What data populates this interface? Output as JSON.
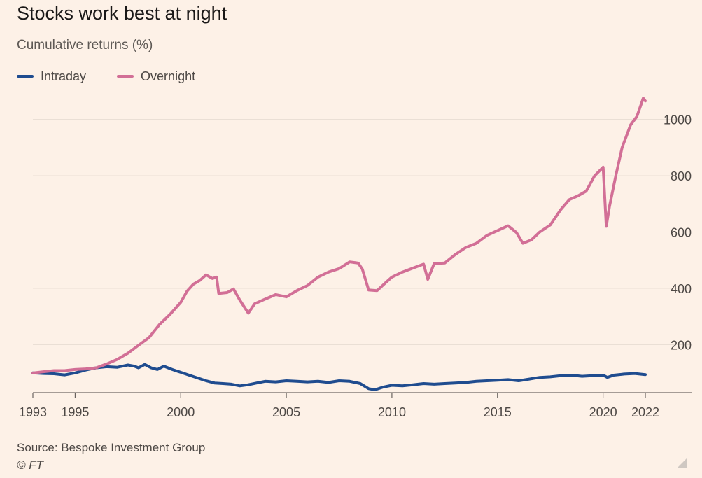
{
  "title": "Stocks work best at night",
  "subtitle": "Cumulative returns (%)",
  "source": "Source: Bespoke Investment Group",
  "copyright": "© FT",
  "chart_data": {
    "type": "line",
    "title": "Stocks work best at night",
    "subtitle": "Cumulative returns (%)",
    "xlabel": "",
    "ylabel": "Cumulative returns (%)",
    "xlim": [
      1993,
      2022
    ],
    "ylim": [
      0,
      1100
    ],
    "x_ticks": [
      "1993",
      "1995",
      "2000",
      "2005",
      "2010",
      "2015",
      "2020",
      "2022"
    ],
    "y_ticks": [
      "200",
      "400",
      "600",
      "800",
      "1000"
    ],
    "grid": "horizontal",
    "legend_position": "top-left",
    "series": [
      {
        "name": "Intraday",
        "color": "#1f4c8f",
        "points": [
          [
            1993.0,
            100
          ],
          [
            1993.5,
            98
          ],
          [
            1994.0,
            97
          ],
          [
            1994.5,
            93
          ],
          [
            1995.0,
            100
          ],
          [
            1995.5,
            110
          ],
          [
            1996.0,
            118
          ],
          [
            1996.5,
            122
          ],
          [
            1997.0,
            120
          ],
          [
            1997.5,
            128
          ],
          [
            1997.8,
            124
          ],
          [
            1998.0,
            118
          ],
          [
            1998.3,
            130
          ],
          [
            1998.6,
            118
          ],
          [
            1998.9,
            112
          ],
          [
            1999.2,
            124
          ],
          [
            1999.6,
            112
          ],
          [
            2000.0,
            102
          ],
          [
            2000.4,
            92
          ],
          [
            2000.8,
            82
          ],
          [
            2001.2,
            72
          ],
          [
            2001.6,
            64
          ],
          [
            2002.0,
            62
          ],
          [
            2002.4,
            60
          ],
          [
            2002.8,
            54
          ],
          [
            2003.2,
            58
          ],
          [
            2003.6,
            64
          ],
          [
            2004.0,
            70
          ],
          [
            2004.5,
            68
          ],
          [
            2005.0,
            72
          ],
          [
            2005.5,
            70
          ],
          [
            2006.0,
            68
          ],
          [
            2006.5,
            70
          ],
          [
            2007.0,
            66
          ],
          [
            2007.5,
            72
          ],
          [
            2008.0,
            70
          ],
          [
            2008.5,
            62
          ],
          [
            2008.9,
            44
          ],
          [
            2009.2,
            40
          ],
          [
            2009.6,
            50
          ],
          [
            2010.0,
            56
          ],
          [
            2010.5,
            54
          ],
          [
            2011.0,
            58
          ],
          [
            2011.5,
            62
          ],
          [
            2012.0,
            60
          ],
          [
            2012.5,
            62
          ],
          [
            2013.0,
            64
          ],
          [
            2013.5,
            66
          ],
          [
            2014.0,
            70
          ],
          [
            2014.5,
            72
          ],
          [
            2015.0,
            74
          ],
          [
            2015.5,
            76
          ],
          [
            2016.0,
            72
          ],
          [
            2016.5,
            78
          ],
          [
            2017.0,
            84
          ],
          [
            2017.5,
            86
          ],
          [
            2018.0,
            90
          ],
          [
            2018.5,
            92
          ],
          [
            2019.0,
            88
          ],
          [
            2019.5,
            90
          ],
          [
            2020.0,
            92
          ],
          [
            2020.2,
            84
          ],
          [
            2020.5,
            92
          ],
          [
            2021.0,
            96
          ],
          [
            2021.5,
            98
          ],
          [
            2022.0,
            94
          ]
        ]
      },
      {
        "name": "Overnight",
        "color": "#d26f96",
        "points": [
          [
            1993.0,
            100
          ],
          [
            1993.5,
            104
          ],
          [
            1994.0,
            108
          ],
          [
            1994.5,
            108
          ],
          [
            1995.0,
            112
          ],
          [
            1995.5,
            114
          ],
          [
            1996.0,
            118
          ],
          [
            1996.5,
            132
          ],
          [
            1997.0,
            148
          ],
          [
            1997.5,
            170
          ],
          [
            1998.0,
            198
          ],
          [
            1998.5,
            225
          ],
          [
            1999.0,
            272
          ],
          [
            1999.5,
            308
          ],
          [
            2000.0,
            350
          ],
          [
            2000.3,
            390
          ],
          [
            2000.6,
            415
          ],
          [
            2000.9,
            428
          ],
          [
            2001.2,
            448
          ],
          [
            2001.5,
            435
          ],
          [
            2001.7,
            440
          ],
          [
            2001.8,
            382
          ],
          [
            2002.2,
            385
          ],
          [
            2002.5,
            398
          ],
          [
            2002.8,
            358
          ],
          [
            2003.2,
            312
          ],
          [
            2003.5,
            345
          ],
          [
            2004.0,
            362
          ],
          [
            2004.5,
            378
          ],
          [
            2005.0,
            370
          ],
          [
            2005.5,
            392
          ],
          [
            2006.0,
            410
          ],
          [
            2006.5,
            440
          ],
          [
            2007.0,
            458
          ],
          [
            2007.5,
            470
          ],
          [
            2008.0,
            494
          ],
          [
            2008.4,
            490
          ],
          [
            2008.6,
            468
          ],
          [
            2008.9,
            394
          ],
          [
            2009.3,
            392
          ],
          [
            2009.7,
            420
          ],
          [
            2010.0,
            440
          ],
          [
            2010.5,
            458
          ],
          [
            2011.0,
            472
          ],
          [
            2011.5,
            486
          ],
          [
            2011.7,
            432
          ],
          [
            2012.0,
            488
          ],
          [
            2012.5,
            490
          ],
          [
            2013.0,
            520
          ],
          [
            2013.5,
            545
          ],
          [
            2014.0,
            560
          ],
          [
            2014.5,
            588
          ],
          [
            2015.0,
            605
          ],
          [
            2015.5,
            622
          ],
          [
            2015.9,
            598
          ],
          [
            2016.2,
            560
          ],
          [
            2016.6,
            572
          ],
          [
            2017.0,
            600
          ],
          [
            2017.5,
            625
          ],
          [
            2018.0,
            680
          ],
          [
            2018.4,
            715
          ],
          [
            2018.8,
            728
          ],
          [
            2019.2,
            745
          ],
          [
            2019.6,
            800
          ],
          [
            2020.0,
            830
          ],
          [
            2020.15,
            620
          ],
          [
            2020.3,
            690
          ],
          [
            2020.6,
            800
          ],
          [
            2020.9,
            900
          ],
          [
            2021.3,
            980
          ],
          [
            2021.6,
            1010
          ],
          [
            2021.9,
            1075
          ],
          [
            2022.0,
            1065
          ]
        ]
      }
    ]
  }
}
